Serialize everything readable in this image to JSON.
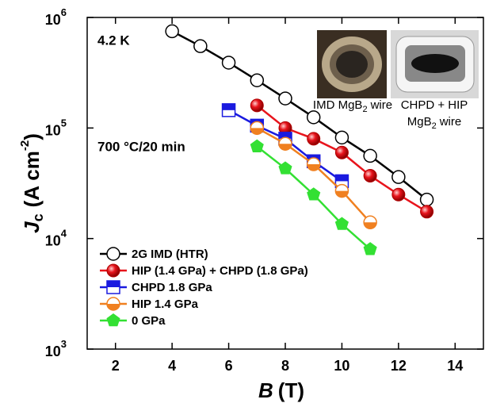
{
  "chart_data": {
    "type": "line",
    "log_y": true,
    "x_label": {
      "main": "B",
      "unit": "(T)"
    },
    "y_label": {
      "main": "J",
      "sub": "c",
      "unit": "(A cm",
      "sup": "-2",
      "close": ")"
    },
    "annotations": [
      "4.2 K",
      "700 °C/20 min"
    ],
    "insets": [
      {
        "caption": "IMD MgB",
        "sub": "2",
        "rest": "wire"
      },
      {
        "caption": "CHPD + HIP",
        "line2": "MgB",
        "sub": "2",
        "rest": "wire"
      }
    ],
    "xlim": [
      1,
      15
    ],
    "xticks": [
      2,
      4,
      6,
      8,
      10,
      12,
      14
    ],
    "ylim": [
      1000,
      1000000
    ],
    "yticks": [
      {
        "value": 1000,
        "label": "10",
        "exponent": "3"
      },
      {
        "value": 10000,
        "label": "10",
        "exponent": "4"
      },
      {
        "value": 100000,
        "label": "10",
        "exponent": "5"
      },
      {
        "value": 1000000,
        "label": "10",
        "exponent": "6"
      }
    ],
    "legend": "lower left",
    "series": [
      {
        "name": "2G IMD (HTR)",
        "color": "#000000",
        "marker": "circle-open",
        "x": [
          4,
          5,
          6,
          7,
          8,
          9,
          10,
          11,
          12,
          13
        ],
        "values": [
          750000,
          550000,
          390000,
          270000,
          185000,
          125000,
          82000,
          56000,
          36000,
          22500
        ]
      },
      {
        "name": "HIP (1.4 GPa) + CHPD (1.8 GPa)",
        "color": "#e8141c",
        "marker": "sphere",
        "x": [
          7,
          8,
          9,
          10,
          11,
          12,
          13
        ],
        "values": [
          160000,
          100000,
          80000,
          60000,
          37000,
          25000,
          17500
        ]
      },
      {
        "name": "CHPD 1.8 GPa",
        "color": "#1a1adf",
        "marker": "square-half",
        "x": [
          6,
          7,
          8,
          9,
          10
        ],
        "values": [
          145000,
          105000,
          80000,
          50000,
          33000
        ]
      },
      {
        "name": "HIP 1.4 GPa",
        "color": "#f08020",
        "marker": "circle-half",
        "x": [
          7,
          8,
          9,
          10,
          11
        ],
        "values": [
          100000,
          72000,
          47000,
          27000,
          14000
        ]
      },
      {
        "name": "0 GPa",
        "color": "#33e033",
        "marker": "pentagon",
        "x": [
          7,
          8,
          9,
          10,
          11
        ],
        "values": [
          68000,
          43000,
          25000,
          13500,
          8000
        ]
      }
    ]
  }
}
